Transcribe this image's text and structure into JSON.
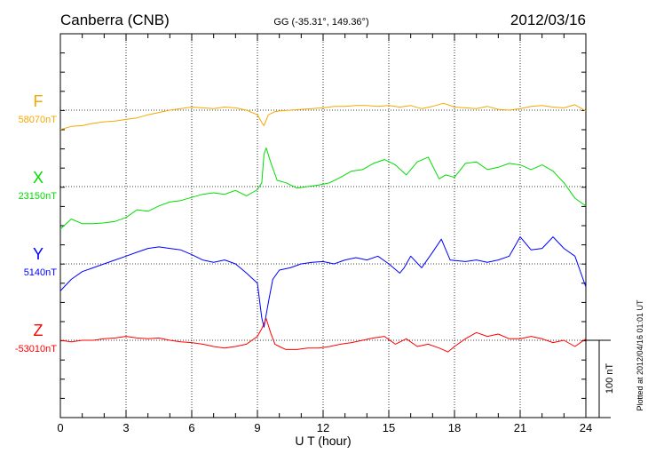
{
  "header": {
    "station": "Canberra (CNB)",
    "coords": "GG (-35.31°, 149.36°)",
    "date": "2012/03/16"
  },
  "footer": {
    "plotted": "Plotted at 2012/04/16 01:01  UT"
  },
  "chart_data": {
    "type": "line",
    "title": "Canberra (CNB)",
    "xlabel": "U T (hour)",
    "ylabel": "",
    "xlim": [
      0,
      24
    ],
    "x_ticks": [
      0,
      3,
      6,
      9,
      12,
      15,
      18,
      21,
      24
    ],
    "grid": true,
    "scale_bar": {
      "label": "100 nT",
      "value": 100
    },
    "series": [
      {
        "name": "F",
        "baseline_label": "58070nT",
        "color": "#f5a800",
        "offset_nT": 20,
        "x": [
          0,
          0.5,
          1,
          1.5,
          2,
          2.5,
          3,
          3.5,
          4,
          4.5,
          5,
          5.5,
          6,
          6.5,
          7,
          7.5,
          8,
          8.5,
          9,
          9.2,
          9.3,
          9.5,
          9.8,
          10,
          10.5,
          11,
          11.5,
          12,
          12.5,
          13,
          13.5,
          14,
          14.5,
          15,
          15.5,
          16,
          16.5,
          17,
          17.5,
          18,
          18.5,
          19,
          19.5,
          20,
          20.5,
          21,
          21.5,
          22,
          22.5,
          23,
          23.5,
          24
        ],
        "values": [
          -5,
          -1,
          0,
          3,
          5,
          6,
          8,
          10,
          14,
          17,
          20,
          22,
          24,
          23,
          22,
          24,
          23,
          20,
          14,
          4,
          0,
          14,
          18,
          19,
          20,
          21,
          22,
          23,
          25,
          25,
          26,
          26,
          25,
          26,
          24,
          26,
          22,
          25,
          29,
          24,
          23,
          22,
          25,
          21,
          20,
          22,
          25,
          26,
          24,
          23,
          27,
          19
        ]
      },
      {
        "name": "X",
        "baseline_label": "23150nT",
        "color": "#00dd00",
        "offset_nT": 0,
        "x": [
          0,
          0.5,
          1,
          1.5,
          2,
          2.5,
          3,
          3.5,
          4,
          4.5,
          5,
          5.5,
          6,
          6.5,
          7,
          7.5,
          8,
          8.5,
          9,
          9.2,
          9.3,
          9.4,
          9.6,
          9.9,
          10.3,
          10.8,
          11.3,
          11.8,
          12.3,
          12.8,
          13.3,
          13.8,
          14.3,
          14.8,
          15.3,
          15.8,
          16.3,
          16.8,
          17.3,
          17.6,
          18,
          18.5,
          19,
          19.5,
          20,
          20.5,
          21,
          21.5,
          22,
          22.5,
          23,
          23.5,
          24
        ],
        "values": [
          -55,
          -42,
          -48,
          -48,
          -47,
          -45,
          -40,
          -30,
          -32,
          -25,
          -20,
          -18,
          -14,
          -10,
          -8,
          -10,
          -5,
          -12,
          -4,
          5,
          42,
          50,
          32,
          8,
          5,
          -2,
          0,
          2,
          5,
          12,
          20,
          22,
          30,
          35,
          28,
          15,
          32,
          38,
          10,
          15,
          12,
          30,
          32,
          22,
          25,
          30,
          28,
          22,
          28,
          20,
          5,
          -15,
          -25
        ]
      },
      {
        "name": "Y",
        "baseline_label": "5140nT",
        "color": "#0000ff",
        "offset_nT": 0,
        "x": [
          0,
          0.5,
          1,
          1.5,
          2,
          2.5,
          3,
          3.5,
          4,
          4.5,
          5,
          5.5,
          6,
          6.5,
          7,
          7.5,
          8,
          8.5,
          9,
          9.2,
          9.3,
          9.5,
          9.7,
          10,
          10.5,
          11,
          11.5,
          12,
          12.5,
          13,
          13.5,
          14,
          14.5,
          15,
          15.5,
          15.7,
          16,
          16.5,
          17,
          17.4,
          17.8,
          18.5,
          19,
          19.5,
          20,
          20.5,
          21,
          21.5,
          22,
          22.5,
          23,
          23.5,
          24
        ],
        "values": [
          -35,
          -20,
          -10,
          -5,
          0,
          5,
          10,
          15,
          20,
          22,
          20,
          18,
          12,
          5,
          2,
          5,
          0,
          -12,
          -25,
          -70,
          -82,
          -50,
          -20,
          -8,
          -5,
          0,
          2,
          3,
          0,
          5,
          8,
          5,
          10,
          0,
          -12,
          -5,
          10,
          -5,
          15,
          32,
          5,
          3,
          5,
          2,
          5,
          10,
          35,
          18,
          20,
          35,
          20,
          10,
          -30
        ]
      },
      {
        "name": "Z",
        "baseline_label": "-53010nT",
        "color": "#ff0000",
        "offset_nT": 0,
        "x": [
          0,
          0.5,
          1,
          1.5,
          2,
          2.5,
          3,
          3.5,
          4,
          4.5,
          5,
          5.5,
          6,
          6.5,
          7,
          7.5,
          8,
          8.5,
          9,
          9.2,
          9.4,
          9.6,
          9.8,
          10,
          10.3,
          10.8,
          11.3,
          11.8,
          12.3,
          12.8,
          13.3,
          13.8,
          14.3,
          14.8,
          15.3,
          15.8,
          16.3,
          16.8,
          17.3,
          17.7,
          18,
          18.5,
          19,
          19.5,
          20,
          20.5,
          21,
          21.5,
          22,
          22.5,
          23,
          23.5,
          24
        ],
        "values": [
          0,
          -2,
          0,
          0,
          2,
          3,
          5,
          3,
          2,
          3,
          0,
          -2,
          -3,
          -5,
          -8,
          -10,
          -8,
          -5,
          5,
          15,
          28,
          10,
          -5,
          -8,
          -12,
          -12,
          -10,
          -10,
          -8,
          -5,
          -3,
          0,
          3,
          5,
          -5,
          2,
          -8,
          -5,
          -10,
          -15,
          -8,
          2,
          10,
          5,
          8,
          2,
          2,
          5,
          2,
          -3,
          0,
          -8,
          2
        ]
      }
    ]
  }
}
